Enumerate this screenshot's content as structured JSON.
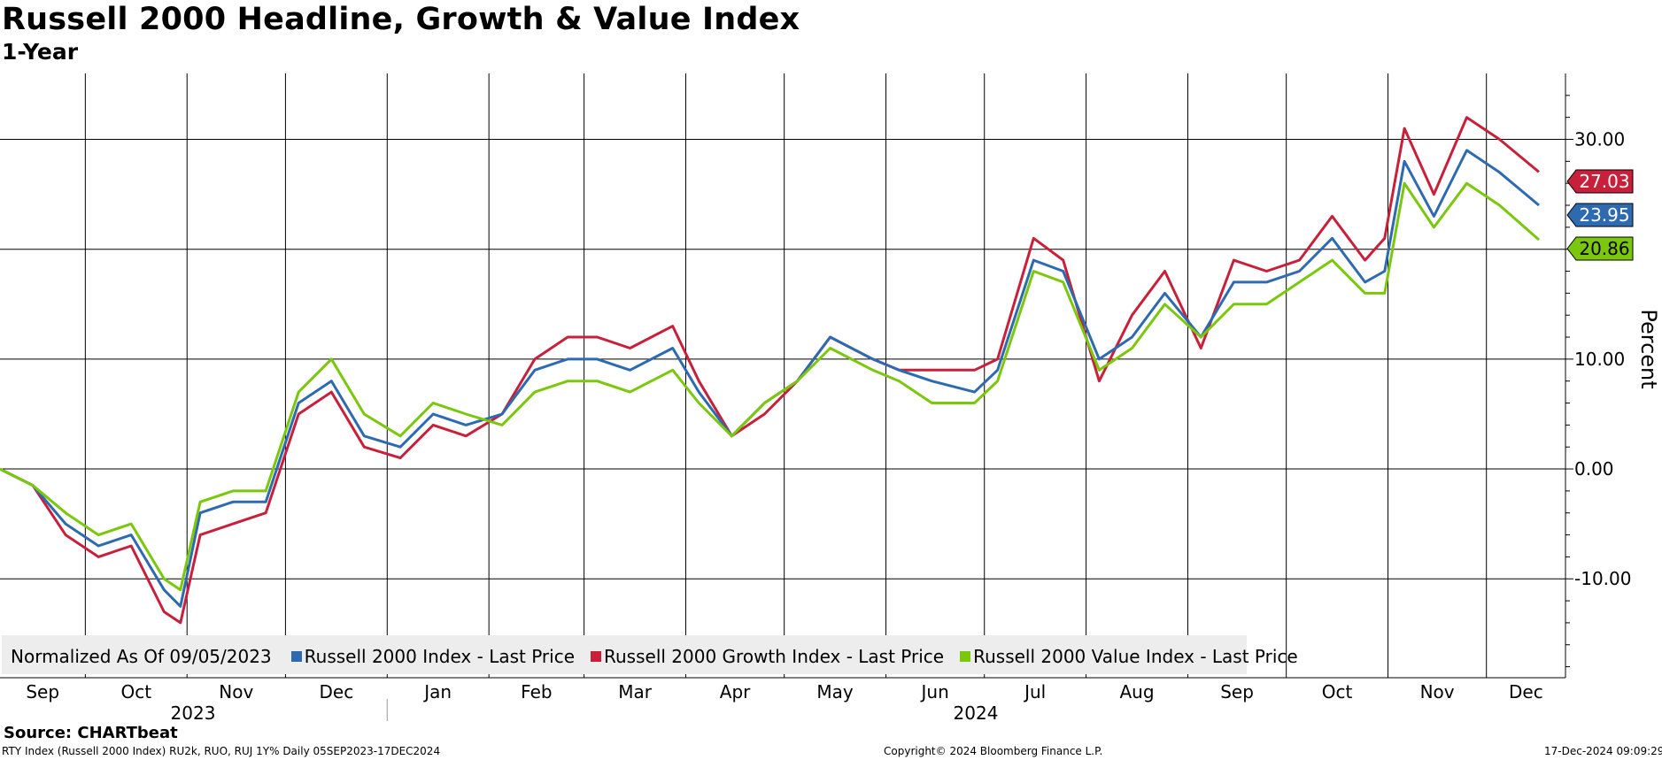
{
  "title": "Russell 2000 Headline, Growth & Value Index",
  "subtitle": "1-Year",
  "source": "Source: CHARTbeat",
  "footer_left": "RTY Index (Russell 2000 Index) RU2k, RUO, RUJ 1Y%  Daily 05SEP2023-17DEC2024",
  "footer_center": "Copyright© 2024 Bloomberg Finance L.P.",
  "footer_right": "17-Dec-2024 09:09:29",
  "legend": {
    "lead": "Normalized As Of 09/05/2023",
    "items": [
      {
        "label": "Russell 2000 Index - Last Price",
        "color": "#2e6ab0"
      },
      {
        "label": "Russell 2000 Growth Index - Last Price",
        "color": "#c8203a"
      },
      {
        "label": "Russell 2000 Value Index - Last Price",
        "color": "#7ac70c"
      }
    ]
  },
  "chart_data": {
    "type": "line",
    "ylabel": "Percent",
    "ylim": [
      -19,
      36
    ],
    "y_ticks": [
      "30.00",
      "20.00",
      "10.00",
      "0.00",
      "-10.00"
    ],
    "y_tick_values": [
      30,
      20,
      10,
      0,
      -10
    ],
    "x_months": [
      "Sep",
      "Oct",
      "Nov",
      "Dec",
      "Jan",
      "Feb",
      "Mar",
      "Apr",
      "May",
      "Jun",
      "Jul",
      "Aug",
      "Sep",
      "Oct",
      "Nov",
      "Dec"
    ],
    "x_years": [
      "2023",
      "2024"
    ],
    "x": [
      "2023-09-05",
      "2023-09-15",
      "2023-09-25",
      "2023-10-05",
      "2023-10-15",
      "2023-10-25",
      "2023-10-30",
      "2023-11-05",
      "2023-11-15",
      "2023-11-25",
      "2023-12-05",
      "2023-12-15",
      "2023-12-25",
      "2024-01-05",
      "2024-01-15",
      "2024-01-25",
      "2024-02-05",
      "2024-02-15",
      "2024-02-25",
      "2024-03-05",
      "2024-03-15",
      "2024-03-28",
      "2024-04-05",
      "2024-04-15",
      "2024-04-25",
      "2024-05-05",
      "2024-05-15",
      "2024-05-28",
      "2024-06-05",
      "2024-06-15",
      "2024-06-28",
      "2024-07-05",
      "2024-07-16",
      "2024-07-25",
      "2024-08-05",
      "2024-08-15",
      "2024-08-25",
      "2024-09-05",
      "2024-09-15",
      "2024-09-25",
      "2024-10-05",
      "2024-10-15",
      "2024-10-25",
      "2024-10-31",
      "2024-11-06",
      "2024-11-15",
      "2024-11-25",
      "2024-12-05",
      "2024-12-17"
    ],
    "series": [
      {
        "name": "Russell 2000 Index - Last Price",
        "color": "#2e6ab0",
        "values": [
          0,
          -1.5,
          -5,
          -7,
          -6,
          -11,
          -12.5,
          -4,
          -3,
          -3,
          6,
          8,
          3,
          2,
          5,
          4,
          5,
          9,
          10,
          10,
          9,
          11,
          7,
          3,
          6,
          8,
          12,
          10,
          9,
          8,
          7,
          9,
          19,
          18,
          10,
          12,
          16,
          12,
          17,
          17,
          18,
          21,
          17,
          18,
          28,
          23,
          29,
          27,
          24
        ]
      },
      {
        "name": "Russell 2000 Growth Index - Last Price",
        "color": "#c8203a",
        "values": [
          0,
          -1.5,
          -6,
          -8,
          -7,
          -13,
          -14,
          -6,
          -5,
          -4,
          5,
          7,
          2,
          1,
          4,
          3,
          5,
          10,
          12,
          12,
          11,
          13,
          8,
          3,
          5,
          8,
          12,
          10,
          9,
          9,
          9,
          10,
          21,
          19,
          8,
          14,
          18,
          11,
          19,
          18,
          19,
          23,
          19,
          21,
          31,
          25,
          32,
          30,
          27.03
        ]
      },
      {
        "name": "Russell 2000 Value Index - Last Price",
        "color": "#7ac70c",
        "values": [
          0,
          -1.5,
          -4,
          -6,
          -5,
          -10,
          -11,
          -3,
          -2,
          -2,
          7,
          10,
          5,
          3,
          6,
          5,
          4,
          7,
          8,
          8,
          7,
          9,
          6,
          3,
          6,
          8,
          11,
          9,
          8,
          6,
          6,
          8,
          18,
          17,
          9,
          11,
          15,
          12,
          15,
          15,
          17,
          19,
          16,
          16,
          26,
          22,
          26,
          24,
          20.86
        ]
      }
    ],
    "last_value_labels": [
      "27.03",
      "23.95",
      "20.86"
    ],
    "grid": true,
    "legend_position": "bottom-left"
  }
}
